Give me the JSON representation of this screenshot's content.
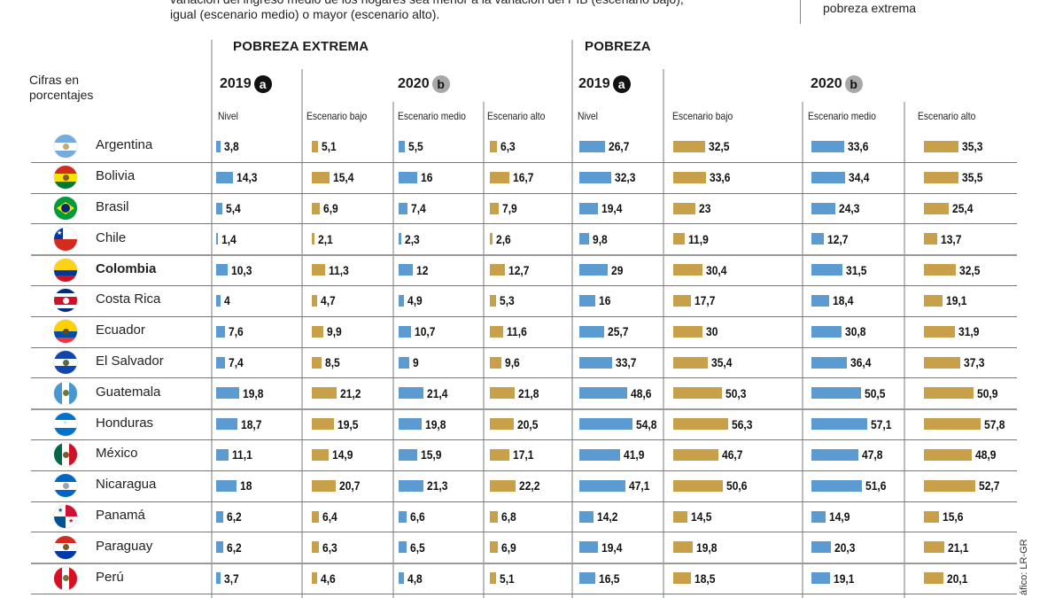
{
  "intro": {
    "line1": "variación del ingreso medio de los hogares sea menor a la variación del PIB (escenario bajo),",
    "line2": "igual (escenario medio) o mayor (escenario alto)."
  },
  "legend": {
    "text": "pobreza extrema"
  },
  "units_label": "Cifras en porcentajes",
  "credit": "áfico: LR-GR",
  "colors": {
    "blue": "#5b9bd1",
    "gold": "#c9a04a",
    "badge_a": "#111111",
    "badge_b": "#a8a8a8"
  },
  "groups": [
    {
      "title": "POBREZA EXTREMA",
      "year_2019": "2019",
      "badge_2019": "a",
      "year_2020": "2020",
      "badge_2020": "b",
      "columns": [
        "Nivel",
        "Escenario bajo",
        "Escenario medio",
        "Escenario alto"
      ]
    },
    {
      "title": "POBREZA",
      "year_2019": "2019",
      "badge_2019": "a",
      "year_2020": "2020",
      "badge_2020": "b",
      "columns": [
        "Nivel",
        "Escenario bajo",
        "Escenario medio",
        "Escenario alto"
      ]
    }
  ],
  "chart_data": {
    "type": "table",
    "title": "",
    "units": "Cifras en porcentajes",
    "column_groups": [
      "POBREZA EXTREMA",
      "POBREZA"
    ],
    "columns": [
      "Pobreza extrema 2019 Nivel",
      "Pobreza extrema 2020 Escenario bajo",
      "Pobreza extrema 2020 Escenario medio",
      "Pobreza extrema 2020 Escenario alto",
      "Pobreza 2019 Nivel",
      "Pobreza 2020 Escenario bajo",
      "Pobreza 2020 Escenario medio",
      "Pobreza 2020 Escenario alto"
    ],
    "bar_colors": [
      "blue",
      "gold",
      "blue",
      "gold",
      "blue",
      "gold",
      "blue",
      "gold"
    ],
    "rows": [
      {
        "country": "Argentina",
        "highlight": false,
        "values": [
          3.8,
          5.1,
          5.5,
          6.3,
          26.7,
          32.5,
          33.6,
          35.3
        ],
        "labels": [
          "3,8",
          "5,1",
          "5,5",
          "6,3",
          "26,7",
          "32,5",
          "33,6",
          "35,3"
        ]
      },
      {
        "country": "Bolivia",
        "highlight": false,
        "values": [
          14.3,
          15.4,
          16,
          16.7,
          32.3,
          33.6,
          34.4,
          35.5
        ],
        "labels": [
          "14,3",
          "15,4",
          "16",
          "16,7",
          "32,3",
          "33,6",
          "34,4",
          "35,5"
        ]
      },
      {
        "country": "Brasil",
        "highlight": false,
        "values": [
          5.4,
          6.9,
          7.4,
          7.9,
          19.4,
          23,
          24.3,
          25.4
        ],
        "labels": [
          "5,4",
          "6,9",
          "7,4",
          "7,9",
          "19,4",
          "23",
          "24,3",
          "25,4"
        ]
      },
      {
        "country": "Chile",
        "highlight": false,
        "values": [
          1.4,
          2.1,
          2.3,
          2.6,
          9.8,
          11.9,
          12.7,
          13.7
        ],
        "labels": [
          "1,4",
          "2,1",
          "2,3",
          "2,6",
          "9,8",
          "11,9",
          "12,7",
          "13,7"
        ]
      },
      {
        "country": "Colombia",
        "highlight": true,
        "values": [
          10.3,
          11.3,
          12,
          12.7,
          29,
          30.4,
          31.5,
          32.5
        ],
        "labels": [
          "10,3",
          "11,3",
          "12",
          "12,7",
          "29",
          "30,4",
          "31,5",
          "32,5"
        ]
      },
      {
        "country": "Costa Rica",
        "highlight": false,
        "values": [
          4,
          4.7,
          4.9,
          5.3,
          16,
          17.7,
          18.4,
          19.1
        ],
        "labels": [
          "4",
          "4,7",
          "4,9",
          "5,3",
          "16",
          "17,7",
          "18,4",
          "19,1"
        ]
      },
      {
        "country": "Ecuador",
        "highlight": false,
        "values": [
          7.6,
          9.9,
          10.7,
          11.6,
          25.7,
          30,
          30.8,
          31.9
        ],
        "labels": [
          "7,6",
          "9,9",
          "10,7",
          "11,6",
          "25,7",
          "30",
          "30,8",
          "31,9"
        ]
      },
      {
        "country": "El Salvador",
        "highlight": false,
        "values": [
          7.4,
          8.5,
          9,
          9.6,
          33.7,
          35.4,
          36.4,
          37.3
        ],
        "labels": [
          "7,4",
          "8,5",
          "9",
          "9,6",
          "33,7",
          "35,4",
          "36,4",
          "37,3"
        ]
      },
      {
        "country": "Guatemala",
        "highlight": false,
        "values": [
          19.8,
          21.2,
          21.4,
          21.8,
          48.6,
          50.3,
          50.5,
          50.9
        ],
        "labels": [
          "19,8",
          "21,2",
          "21,4",
          "21,8",
          "48,6",
          "50,3",
          "50,5",
          "50,9"
        ]
      },
      {
        "country": "Honduras",
        "highlight": false,
        "values": [
          18.7,
          19.5,
          19.8,
          20.5,
          54.8,
          56.3,
          57.1,
          57.8
        ],
        "labels": [
          "18,7",
          "19,5",
          "19,8",
          "20,5",
          "54,8",
          "56,3",
          "57,1",
          "57,8"
        ]
      },
      {
        "country": "México",
        "highlight": false,
        "values": [
          11.1,
          14.9,
          15.9,
          17.1,
          41.9,
          46.7,
          47.8,
          48.9
        ],
        "labels": [
          "11,1",
          "14,9",
          "15,9",
          "17,1",
          "41,9",
          "46,7",
          "47,8",
          "48,9"
        ]
      },
      {
        "country": "Nicaragua",
        "highlight": false,
        "values": [
          18,
          20.7,
          21.3,
          22.2,
          47.1,
          50.6,
          51.6,
          52.7
        ],
        "labels": [
          "18",
          "20,7",
          "21,3",
          "22,2",
          "47,1",
          "50,6",
          "51,6",
          "52,7"
        ]
      },
      {
        "country": "Panamá",
        "highlight": false,
        "values": [
          6.2,
          6.4,
          6.6,
          6.8,
          14.2,
          14.5,
          14.9,
          15.6
        ],
        "labels": [
          "6,2",
          "6,4",
          "6,6",
          "6,8",
          "14,2",
          "14,5",
          "14,9",
          "15,6"
        ]
      },
      {
        "country": "Paraguay",
        "highlight": false,
        "values": [
          6.2,
          6.3,
          6.5,
          6.9,
          19.4,
          19.8,
          20.3,
          21.1
        ],
        "labels": [
          "6,2",
          "6,3",
          "6,5",
          "6,9",
          "19,4",
          "19,8",
          "20,3",
          "21,1"
        ]
      },
      {
        "country": "Perú",
        "highlight": false,
        "values": [
          3.7,
          4.6,
          4.8,
          5.1,
          16.5,
          18.5,
          19.1,
          20.1
        ],
        "labels": [
          "3,7",
          "4,6",
          "4,8",
          "5,1",
          "16,5",
          "18,5",
          "19,1",
          "20,1"
        ]
      }
    ]
  }
}
